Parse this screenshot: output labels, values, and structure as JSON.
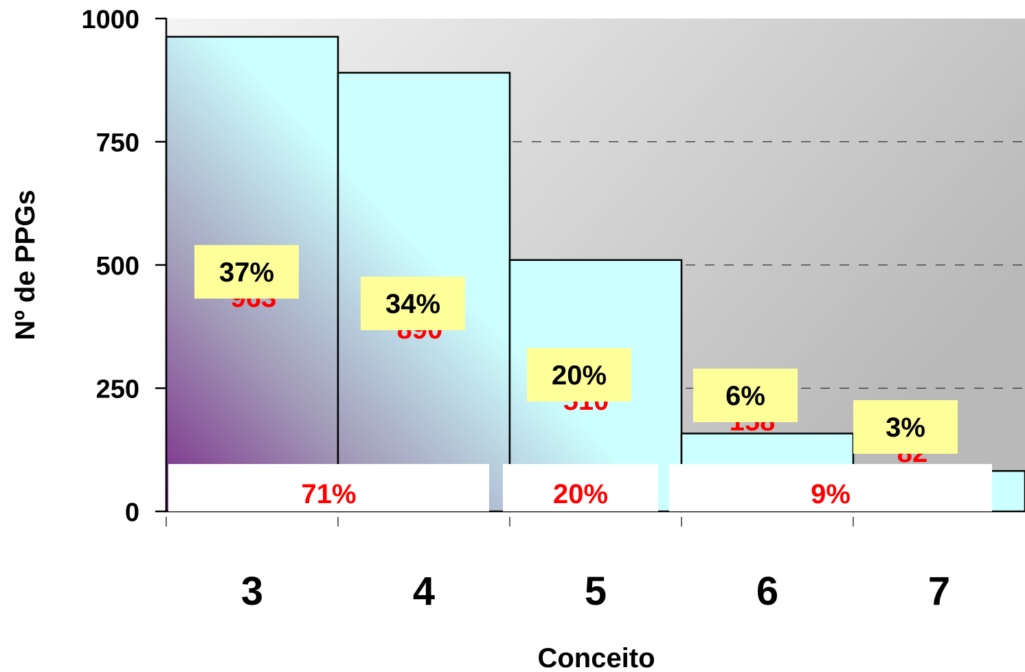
{
  "chart_data": {
    "type": "bar",
    "xlabel": "Conceito",
    "ylabel": "Nº de PPGs",
    "ylim": [
      0,
      1000
    ],
    "yticks": [
      "0",
      "250",
      "500",
      "750",
      "1000"
    ],
    "grid": "horizontal dashed",
    "categories": [
      "3",
      "4",
      "5",
      "6",
      "7"
    ],
    "values": [
      963,
      890,
      510,
      158,
      82
    ],
    "percent_labels": [
      "37%",
      "34%",
      "20%",
      "6%",
      "3%"
    ],
    "group_labels": [
      {
        "label": "71%",
        "categories": [
          "3",
          "4"
        ]
      },
      {
        "label": "20%",
        "categories": [
          "5"
        ]
      },
      {
        "label": "9%",
        "categories": [
          "6",
          "7"
        ]
      }
    ],
    "colors": {
      "bar_fill": "#ccffff",
      "bar_gradient_dark": "#7a2a88",
      "label_box": "#ffff99",
      "group_text": "#ff0000",
      "plot_bg_light": "#f2f2f2",
      "plot_bg_dark": "#bdbdbd"
    }
  }
}
